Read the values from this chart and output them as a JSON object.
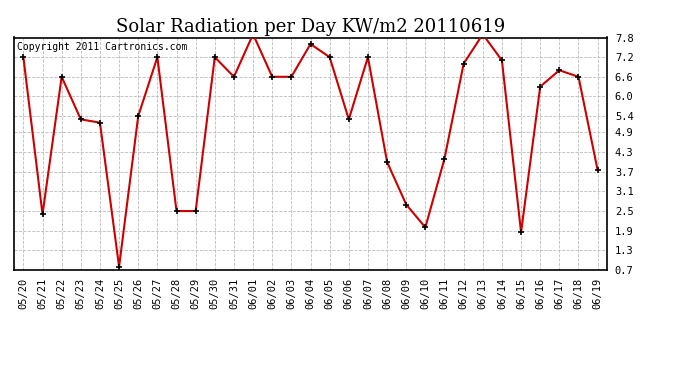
{
  "title": "Solar Radiation per Day KW/m2 20110619",
  "copyright_text": "Copyright 2011 Cartronics.com",
  "dates": [
    "05/20",
    "05/21",
    "05/22",
    "05/23",
    "05/24",
    "05/25",
    "05/26",
    "05/27",
    "05/28",
    "05/29",
    "05/30",
    "05/31",
    "06/01",
    "06/02",
    "06/03",
    "06/04",
    "06/05",
    "06/06",
    "06/07",
    "06/08",
    "06/09",
    "06/10",
    "06/11",
    "06/12",
    "06/13",
    "06/14",
    "06/15",
    "06/16",
    "06/17",
    "06/18",
    "06/19"
  ],
  "values": [
    7.2,
    2.4,
    6.6,
    5.3,
    5.2,
    0.8,
    5.4,
    7.2,
    2.5,
    2.5,
    7.2,
    6.6,
    7.9,
    6.6,
    6.6,
    7.6,
    7.2,
    5.3,
    7.2,
    4.0,
    2.7,
    2.0,
    4.1,
    7.0,
    7.9,
    7.1,
    1.85,
    6.3,
    6.8,
    6.6,
    3.75
  ],
  "y_ticks": [
    0.7,
    1.3,
    1.9,
    2.5,
    3.1,
    3.7,
    4.3,
    4.9,
    5.4,
    6.0,
    6.6,
    7.2,
    7.8
  ],
  "ylim": [
    0.7,
    7.8
  ],
  "line_color": "#cc0000",
  "marker_color": "#000000",
  "background_color": "#ffffff",
  "grid_color": "#bbbbbb",
  "title_fontsize": 13,
  "copyright_fontsize": 7,
  "tick_fontsize": 7.5
}
